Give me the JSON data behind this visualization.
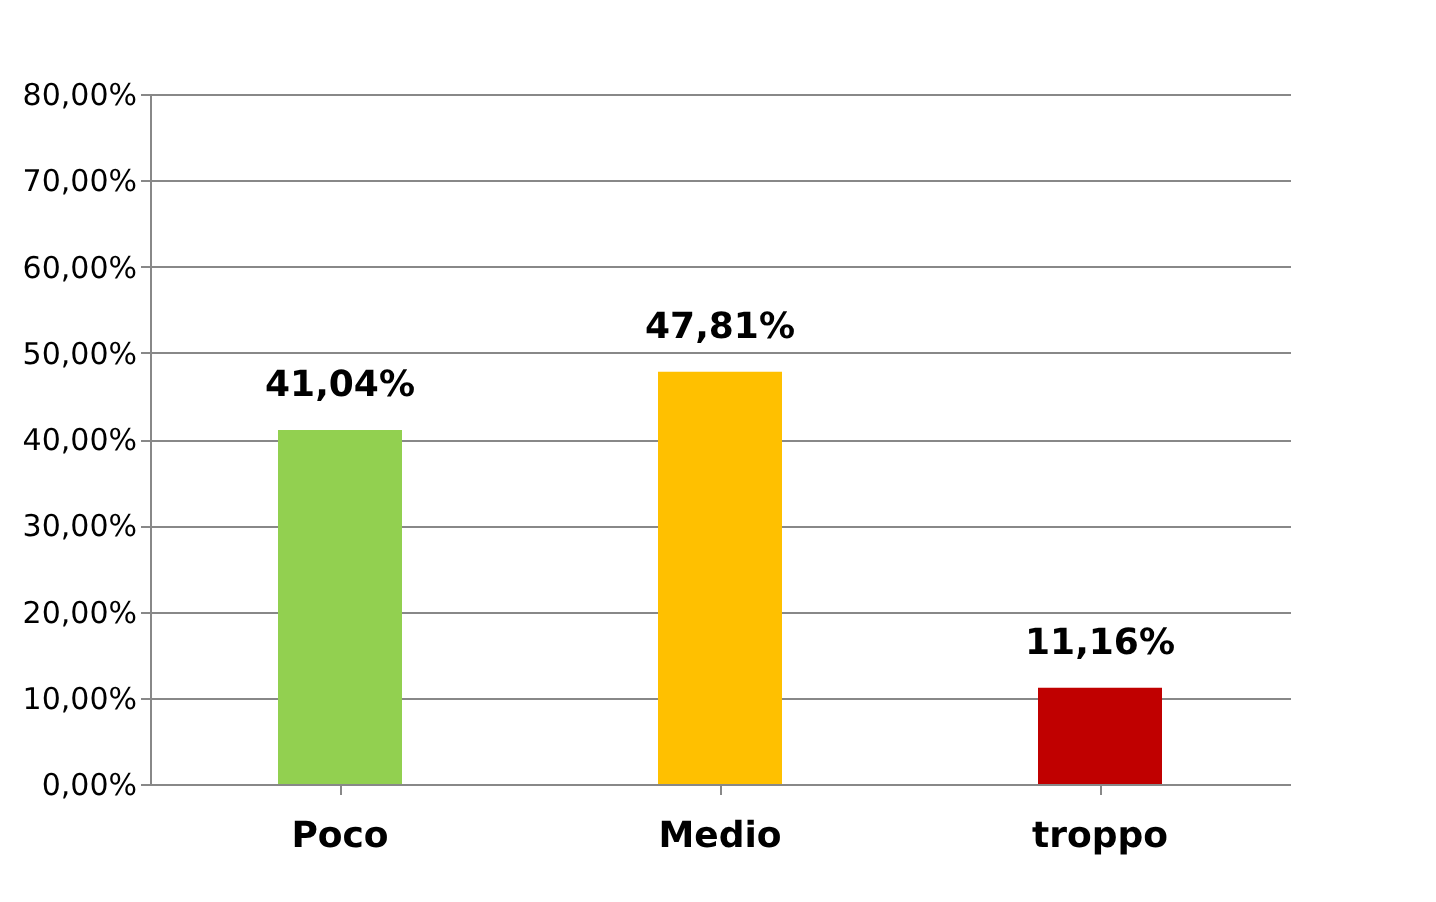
{
  "chart_data": {
    "type": "bar",
    "categories": [
      "Poco",
      "Medio",
      "troppo"
    ],
    "values": [
      41.04,
      47.81,
      11.16
    ],
    "colors": [
      "#92d050",
      "#ffc000",
      "#c00000"
    ],
    "value_labels": [
      "41,04%",
      "47,81%",
      "11,16%"
    ],
    "ylim": [
      0,
      80
    ],
    "yticks": [
      {
        "value": 0,
        "label": "0,00%"
      },
      {
        "value": 10,
        "label": "10,00%"
      },
      {
        "value": 20,
        "label": "20,00%"
      },
      {
        "value": 30,
        "label": "30,00%"
      },
      {
        "value": 40,
        "label": "40,00%"
      },
      {
        "value": 50,
        "label": "50,00%"
      },
      {
        "value": 60,
        "label": "60,00%"
      },
      {
        "value": 70,
        "label": "70,00%"
      },
      {
        "value": 80,
        "label": "80,00%"
      }
    ],
    "grid": "y",
    "legend": false
  }
}
